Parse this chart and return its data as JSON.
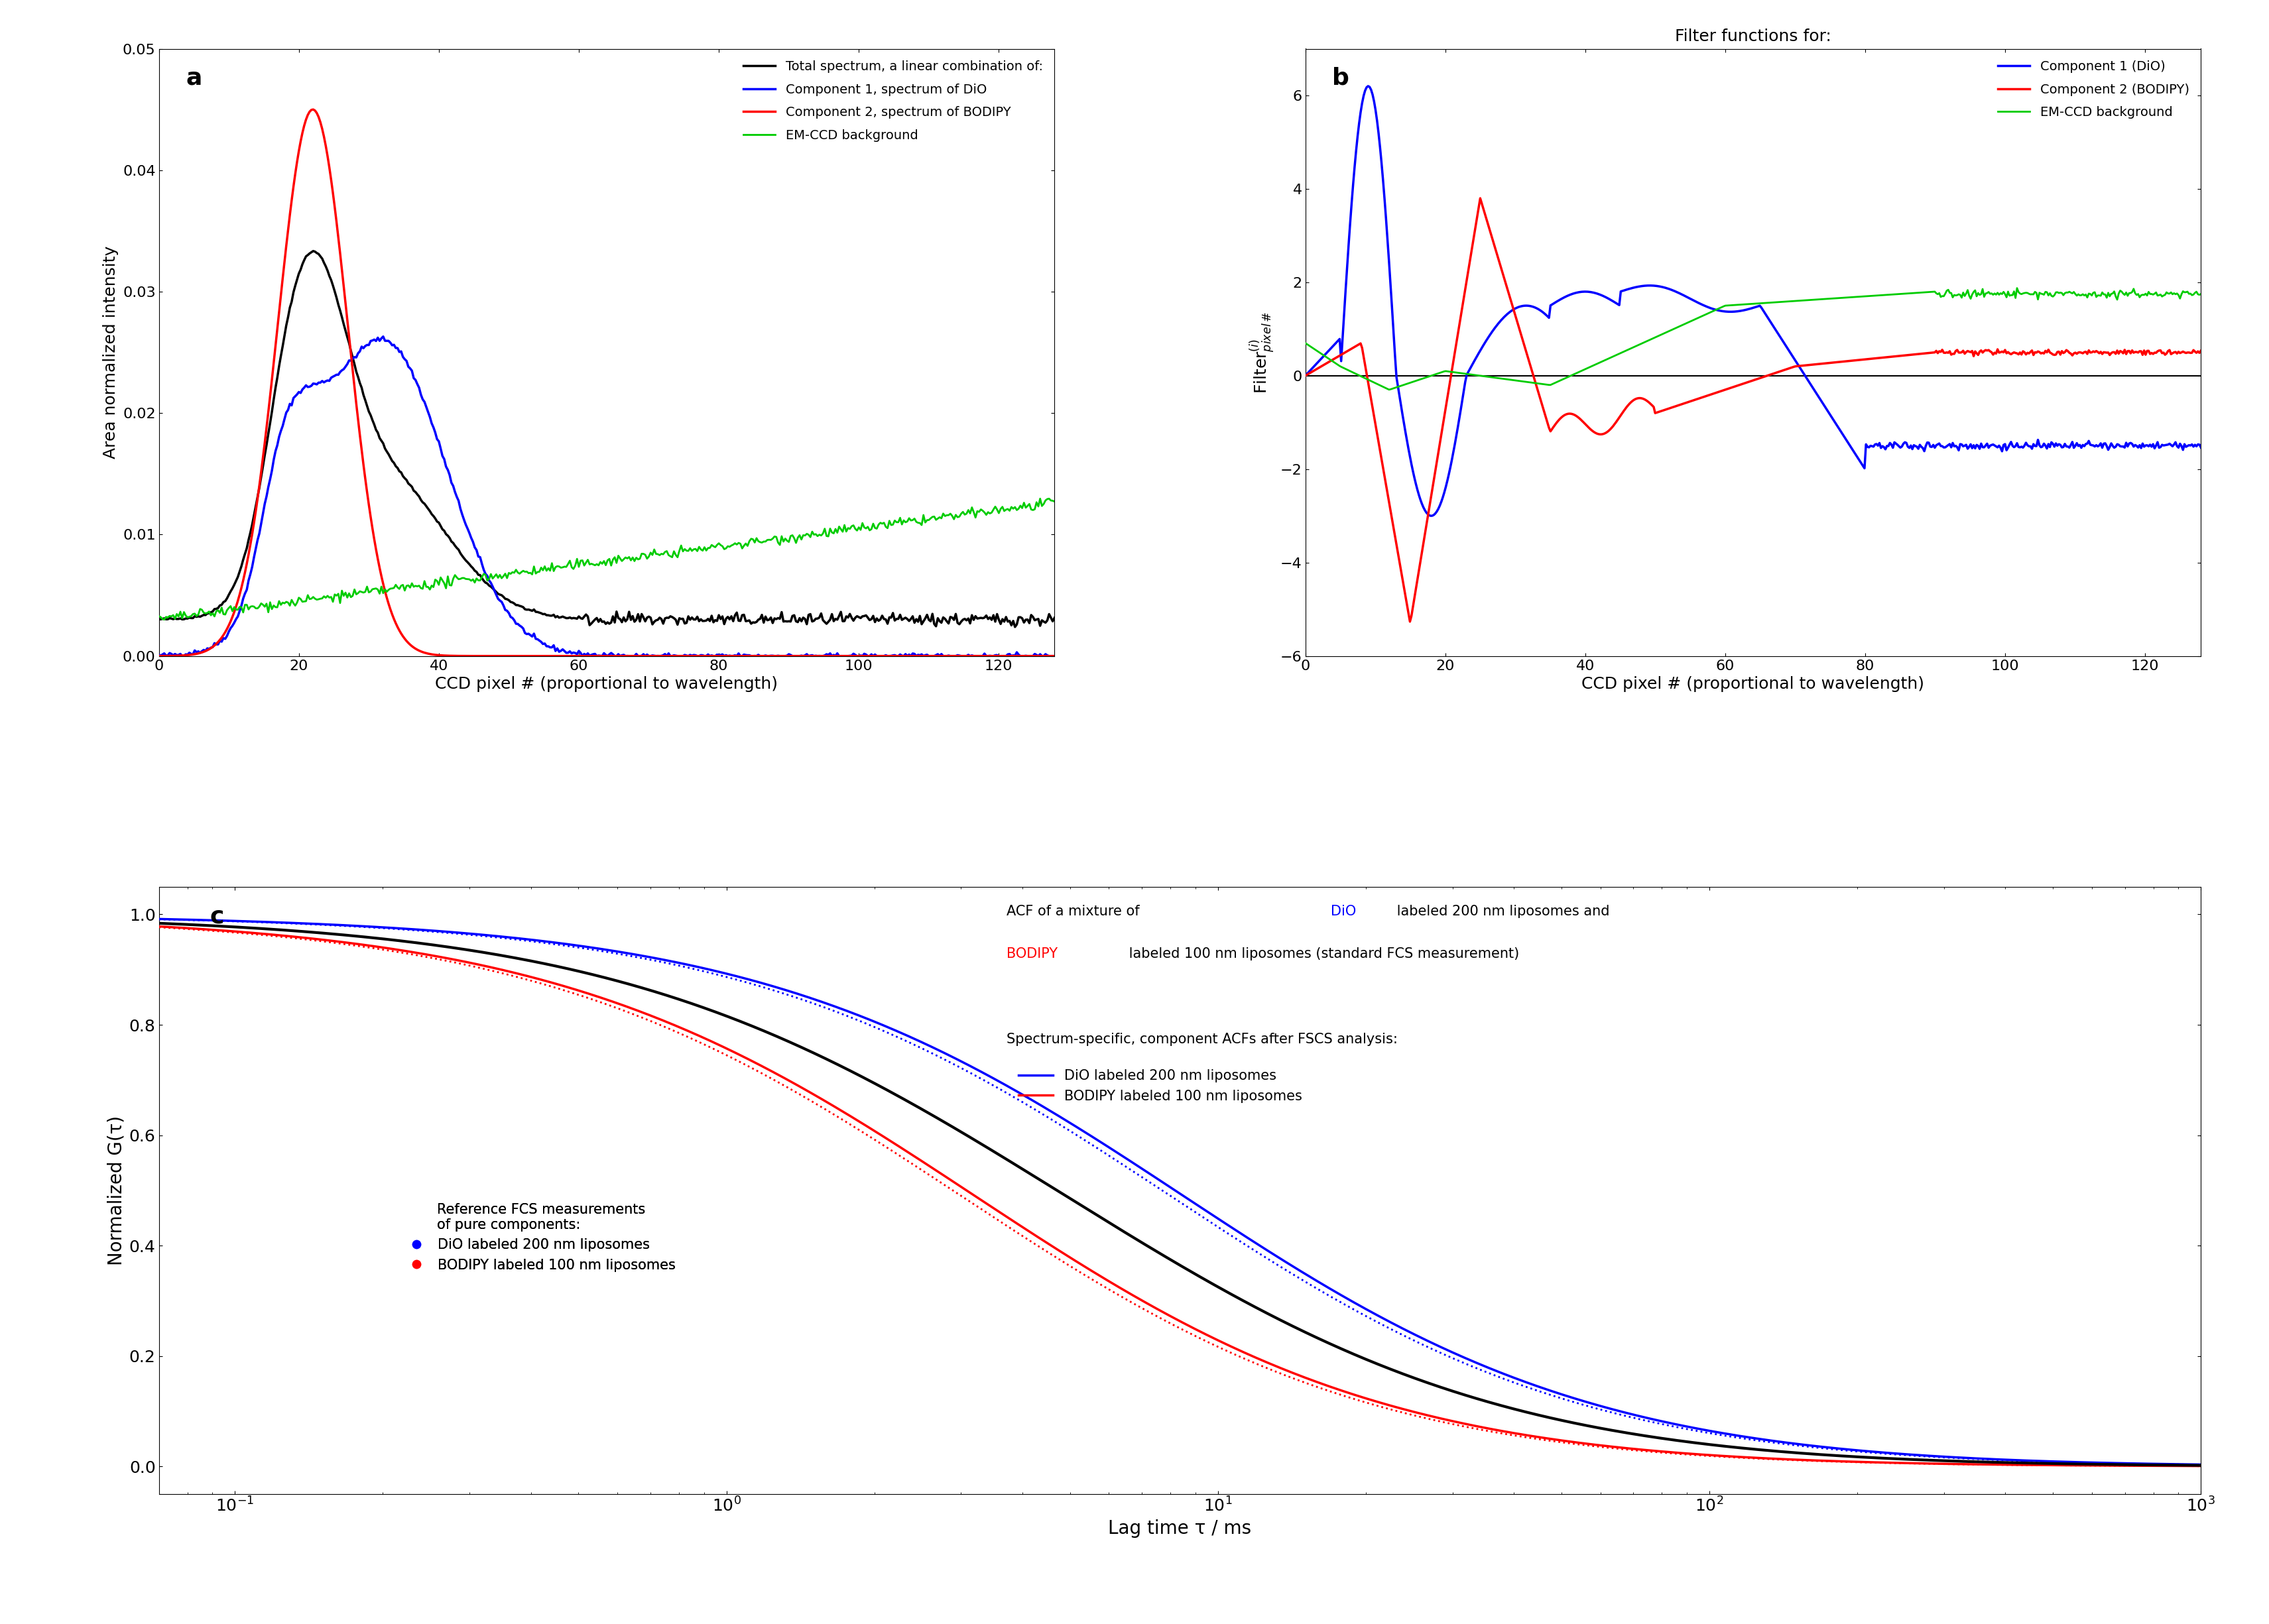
{
  "panel_a": {
    "xlabel": "CCD pixel # (proportional to wavelength)",
    "ylabel": "Area normalized intensity",
    "xlim": [
      0,
      128
    ],
    "ylim": [
      0,
      0.05
    ],
    "yticks": [
      0.0,
      0.01,
      0.02,
      0.03,
      0.04,
      0.05
    ],
    "xticks": [
      0,
      20,
      40,
      60,
      80,
      100,
      120
    ],
    "label": "a"
  },
  "panel_b": {
    "title": "Filter functions for:",
    "xlabel": "CCD pixel # (proportional to wavelength)",
    "xlim": [
      0,
      128
    ],
    "ylim": [
      -6,
      7
    ],
    "yticks": [
      -6,
      -4,
      -2,
      0,
      2,
      4,
      6
    ],
    "xticks": [
      0,
      20,
      40,
      60,
      80,
      100,
      120
    ],
    "label": "b"
  },
  "panel_c": {
    "xlabel": "Lag time τ / ms",
    "ylabel": "Normalized G(τ)",
    "xlim": [
      0.07,
      1000
    ],
    "ylim": [
      -0.05,
      1.05
    ],
    "yticks": [
      0.0,
      0.2,
      0.4,
      0.6,
      0.8,
      1.0
    ],
    "label": "c"
  }
}
